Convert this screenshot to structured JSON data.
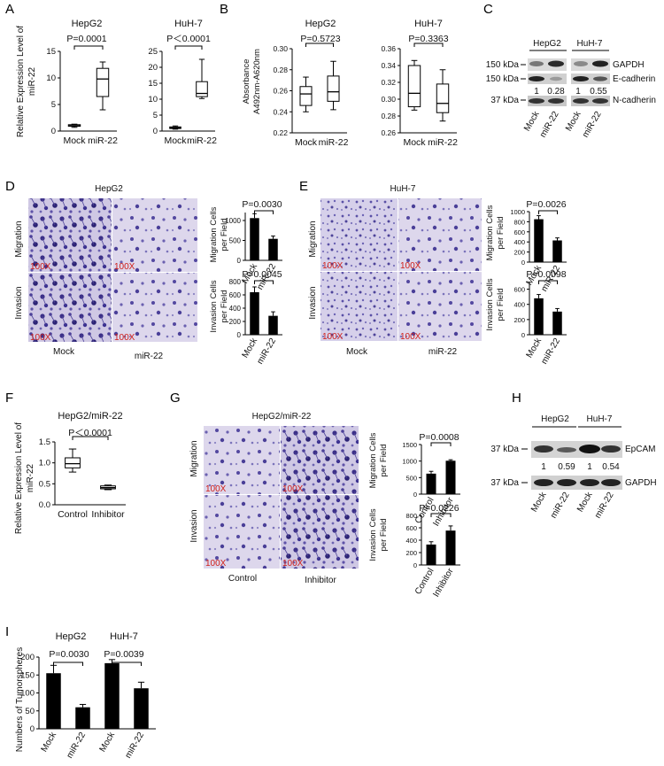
{
  "panels": {
    "A": {
      "letter": "A",
      "ylabel_1": "Relative Expression Level of",
      "ylabel_2": "miR-22",
      "charts": [
        {
          "title": "HepG2",
          "pval": "P=0.0001",
          "yticks": [
            "0",
            "5",
            "10",
            "15"
          ],
          "categories": [
            "Mock",
            "miR-22"
          ]
        },
        {
          "title": "HuH-7",
          "pval": "P＜0.0001",
          "yticks": [
            "0",
            "5",
            "10",
            "15",
            "20",
            "25"
          ],
          "categories": [
            "Mock",
            "miR-22"
          ]
        }
      ]
    },
    "B": {
      "letter": "B",
      "ylabel_1": "Absorbance",
      "ylabel_2": "A492nm-A620nm",
      "charts": [
        {
          "title": "HepG2",
          "pval": "P=0.5723",
          "yticks": [
            "0.22",
            "0.24",
            "0.26",
            "0.28",
            "0.30"
          ],
          "categories": [
            "Mock",
            "miR-22"
          ]
        },
        {
          "title": "HuH-7",
          "pval": "P=0.3363",
          "yticks": [
            "0.26",
            "0.28",
            "0.30",
            "0.32",
            "0.34",
            "0.36"
          ],
          "categories": [
            "Mock",
            "miR-22"
          ]
        }
      ]
    },
    "C": {
      "letter": "C",
      "groups": [
        "HepG2",
        "HuH-7"
      ],
      "markers": [
        "150 kDa",
        "150 kDa",
        "37  kDa"
      ],
      "proteins": [
        "GAPDH",
        "E-cadherin",
        "N-cadherin"
      ],
      "ratios": [
        "1",
        "0.28",
        "1",
        "0.55"
      ],
      "lanes": [
        "Mock",
        "miR-22",
        "Mock",
        "miR-22"
      ]
    },
    "D": {
      "letter": "D",
      "title": "HepG2",
      "rows": [
        "Migration",
        "Invasion"
      ],
      "mag": "100X",
      "cols": [
        "Mock",
        "miR-22"
      ],
      "ylabel_top": "Migration Cells",
      "ylabel_bot": "Invasion Cells",
      "ylabel_sub": "per Field",
      "p_top": "P=0.0030",
      "p_bot": "P=0.0045",
      "yticks_top": [
        "0",
        "500",
        "1000"
      ],
      "yticks_bot": [
        "0",
        "200",
        "400",
        "600",
        "800"
      ],
      "categories": [
        "Mock",
        "miR-22"
      ]
    },
    "E": {
      "letter": "E",
      "title": "HuH-7",
      "rows": [
        "Migration",
        "Invasion"
      ],
      "mag": "100X",
      "cols": [
        "Mock",
        "miR-22"
      ],
      "ylabel_top": "Migration Cells",
      "ylabel_bot": "Invasion Cells",
      "ylabel_sub": "per Field",
      "p_top": "P=0.0026",
      "p_bot": "P=0.0098",
      "yticks_top": [
        "0",
        "200",
        "400",
        "600",
        "800",
        "1000"
      ],
      "yticks_bot": [
        "0",
        "200",
        "400",
        "600"
      ],
      "categories": [
        "Mock",
        "miR-22"
      ]
    },
    "F": {
      "letter": "F",
      "title": "HepG2/miR-22",
      "pval": "P＜0.0001",
      "ylabel_1": "Relative Expression Level of",
      "ylabel_2": "miR-22",
      "yticks": [
        "0.0",
        "0.5",
        "1.0",
        "1.5"
      ],
      "categories": [
        "Control",
        "Inhibitor"
      ]
    },
    "G": {
      "letter": "G",
      "title": "HepG2/miR-22",
      "rows": [
        "Migration",
        "Invasion"
      ],
      "mag": "100X",
      "cols": [
        "Control",
        "Inhibitor"
      ],
      "ylabel_top": "Migration Cells",
      "ylabel_bot": "Invasion Cells",
      "ylabel_sub": "per Field",
      "p_top": "P=0.0008",
      "p_bot": "P=0.0226",
      "yticks_top": [
        "0",
        "500",
        "1000",
        "1500"
      ],
      "yticks_bot": [
        "0",
        "200",
        "400",
        "600",
        "800"
      ],
      "categories": [
        "Control",
        "Inhibitor"
      ]
    },
    "H": {
      "letter": "H",
      "groups": [
        "HepG2",
        "HuH-7"
      ],
      "markers": [
        "37 kDa",
        "37 kDa"
      ],
      "proteins": [
        "EpCAM",
        "GAPDH"
      ],
      "ratios": [
        "1",
        "0.59",
        "1",
        "0.54"
      ],
      "lanes": [
        "Mock",
        "miR-22",
        "Mock",
        "miR-22"
      ]
    },
    "I": {
      "letter": "I",
      "groups": [
        "HepG2",
        "HuH-7"
      ],
      "p1": "P=0.0030",
      "p2": "P=0.0039",
      "ylabel": "Numbers of Tumorspheres",
      "yticks": [
        "0",
        "50",
        "100",
        "150",
        "200"
      ],
      "categories": [
        "Mock",
        "miR-22",
        "Mock",
        "miR-22"
      ]
    }
  },
  "chart_data": [
    {
      "type": "box",
      "panel": "A-HepG2",
      "categories": [
        "Mock",
        "miR-22"
      ],
      "ylim": [
        0,
        15
      ],
      "boxes": [
        {
          "min": 0.7,
          "q1": 0.9,
          "median": 1.0,
          "q3": 1.2,
          "max": 1.3
        },
        {
          "min": 4,
          "q1": 6.5,
          "median": 9.8,
          "q3": 11.8,
          "max": 13
        }
      ]
    },
    {
      "type": "box",
      "panel": "A-HuH-7",
      "categories": [
        "Mock",
        "miR-22"
      ],
      "ylim": [
        0,
        25
      ],
      "boxes": [
        {
          "min": 0.6,
          "q1": 0.8,
          "median": 1.0,
          "q3": 1.3,
          "max": 1.6
        },
        {
          "min": 10.2,
          "q1": 10.8,
          "median": 11.8,
          "q3": 15.5,
          "max": 22.5
        }
      ]
    },
    {
      "type": "box",
      "panel": "B-HepG2",
      "categories": [
        "Mock",
        "miR-22"
      ],
      "ylim": [
        0.22,
        0.3
      ],
      "boxes": [
        {
          "min": 0.24,
          "q1": 0.246,
          "median": 0.257,
          "q3": 0.264,
          "max": 0.273
        },
        {
          "min": 0.242,
          "q1": 0.25,
          "median": 0.259,
          "q3": 0.274,
          "max": 0.288
        }
      ]
    },
    {
      "type": "box",
      "panel": "B-HuH-7",
      "categories": [
        "Mock",
        "miR-22"
      ],
      "ylim": [
        0.26,
        0.36
      ],
      "boxes": [
        {
          "min": 0.287,
          "q1": 0.291,
          "median": 0.307,
          "q3": 0.34,
          "max": 0.346
        },
        {
          "min": 0.274,
          "q1": 0.284,
          "median": 0.295,
          "q3": 0.318,
          "max": 0.335
        }
      ]
    },
    {
      "type": "bar",
      "panel": "D-migration",
      "categories": [
        "Mock",
        "miR-22"
      ],
      "ylim": [
        0,
        1200
      ],
      "values": [
        1060,
        540
      ],
      "errors": [
        110,
        70
      ]
    },
    {
      "type": "bar",
      "panel": "D-invasion",
      "categories": [
        "Mock",
        "miR-22"
      ],
      "ylim": [
        0,
        800
      ],
      "values": [
        640,
        285
      ],
      "errors": [
        80,
        60
      ]
    },
    {
      "type": "bar",
      "panel": "E-migration",
      "categories": [
        "Mock",
        "miR-22"
      ],
      "ylim": [
        0,
        1000
      ],
      "values": [
        850,
        430
      ],
      "errors": [
        70,
        50
      ]
    },
    {
      "type": "bar",
      "panel": "E-invasion",
      "categories": [
        "Mock",
        "miR-22"
      ],
      "ylim": [
        0,
        700
      ],
      "values": [
        480,
        305
      ],
      "errors": [
        50,
        40
      ]
    },
    {
      "type": "box",
      "panel": "F",
      "categories": [
        "Control",
        "Inhibitor"
      ],
      "ylim": [
        0,
        1.5
      ],
      "boxes": [
        {
          "min": 0.78,
          "q1": 0.88,
          "median": 0.98,
          "q3": 1.12,
          "max": 1.33
        },
        {
          "min": 0.36,
          "q1": 0.38,
          "median": 0.41,
          "q3": 0.45,
          "max": 0.47
        }
      ]
    },
    {
      "type": "bar",
      "panel": "G-migration",
      "categories": [
        "Control",
        "Inhibitor"
      ],
      "ylim": [
        0,
        1500
      ],
      "values": [
        620,
        1010
      ],
      "errors": [
        70,
        30
      ]
    },
    {
      "type": "bar",
      "panel": "G-invasion",
      "categories": [
        "Control",
        "Inhibitor"
      ],
      "ylim": [
        0,
        800
      ],
      "values": [
        330,
        555
      ],
      "errors": [
        45,
        75
      ]
    },
    {
      "type": "bar",
      "panel": "I",
      "categories": [
        "Mock",
        "miR-22",
        "Mock",
        "miR-22"
      ],
      "ylim": [
        0,
        200
      ],
      "values": [
        155,
        60,
        183,
        113
      ],
      "errors": [
        22,
        8,
        10,
        17
      ]
    }
  ]
}
